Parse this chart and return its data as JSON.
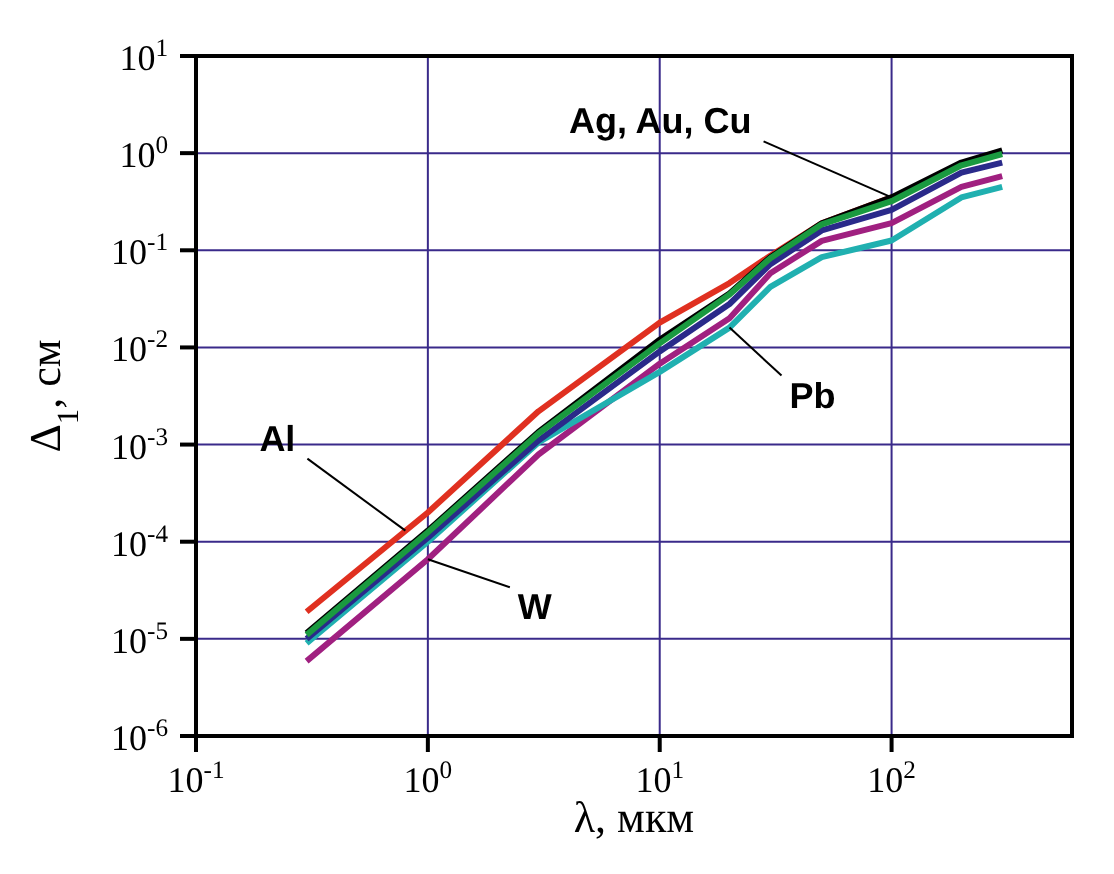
{
  "chart_data": {
    "type": "line",
    "xlabel": "λ, мкм",
    "ylabel": "Δ$_{1}$, см",
    "log": "xy",
    "grid": true,
    "marker": "none",
    "line_style": "solid",
    "x": [
      0.3,
      1,
      3,
      10,
      20,
      30,
      50,
      100,
      200,
      300
    ],
    "xlim": [
      0.1,
      600
    ],
    "ylim": [
      1e-06,
      10
    ],
    "xticks": [
      {
        "value": 0.1,
        "label": "10$^{-1}$"
      },
      {
        "value": 1,
        "label": "10$^{0}$"
      },
      {
        "value": 10,
        "label": "10$^{1}$"
      },
      {
        "value": 100,
        "label": "10$^{2}$"
      }
    ],
    "yticks": [
      {
        "value": 1e-06,
        "label": "10$^{-6}$"
      },
      {
        "value": 1e-05,
        "label": "10$^{-5}$"
      },
      {
        "value": 0.0001,
        "label": "10$^{-4}$"
      },
      {
        "value": 0.001,
        "label": "10$^{-3}$"
      },
      {
        "value": 0.01,
        "label": "10$^{-2}$"
      },
      {
        "value": 0.1,
        "label": "10$^{-1}$"
      },
      {
        "value": 1,
        "label": "10$^{0}$"
      },
      {
        "value": 10,
        "label": "10$^{1}$"
      }
    ],
    "series": [
      {
        "color": "#e03020",
        "values": [
          1.9e-05,
          0.0002,
          0.0022,
          0.018,
          0.046,
          0.088,
          0.19,
          0.35,
          null,
          null
        ]
      },
      {
        "color": "#a02080",
        "values": [
          5.9e-06,
          6.6e-05,
          0.00079,
          0.0068,
          0.02,
          0.058,
          0.125,
          0.19,
          0.45,
          0.58
        ]
      },
      {
        "color": "#20b0b0",
        "values": [
          9e-06,
          0.0001,
          0.00105,
          0.0056,
          0.016,
          0.042,
          0.085,
          0.126,
          0.35,
          0.45
        ]
      },
      {
        "color": "#2a2a8a",
        "values": [
          1e-05,
          0.00011,
          0.0011,
          0.0091,
          0.028,
          0.072,
          0.16,
          0.26,
          0.63,
          0.8
        ]
      },
      {
        "color": "#000000",
        "values": [
          1.15e-05,
          0.00013,
          0.00135,
          0.012,
          0.036,
          0.085,
          0.19,
          0.35,
          0.8,
          1.07
        ]
      },
      {
        "color": "#1a9a40",
        "values": [
          1.1e-05,
          0.000125,
          0.0013,
          0.011,
          0.035,
          0.083,
          0.185,
          0.32,
          0.75,
          0.98
        ]
      }
    ],
    "annotations": [
      {
        "text": "Al",
        "x": 0.8,
        "y": 0.00013
      },
      {
        "text": "W",
        "x": 1,
        "y": 6.6e-05
      },
      {
        "text": "Ag, Au, Cu",
        "x": 100,
        "y": 0.35
      },
      {
        "text": "Pb",
        "x": 20,
        "y": 0.016
      }
    ]
  }
}
